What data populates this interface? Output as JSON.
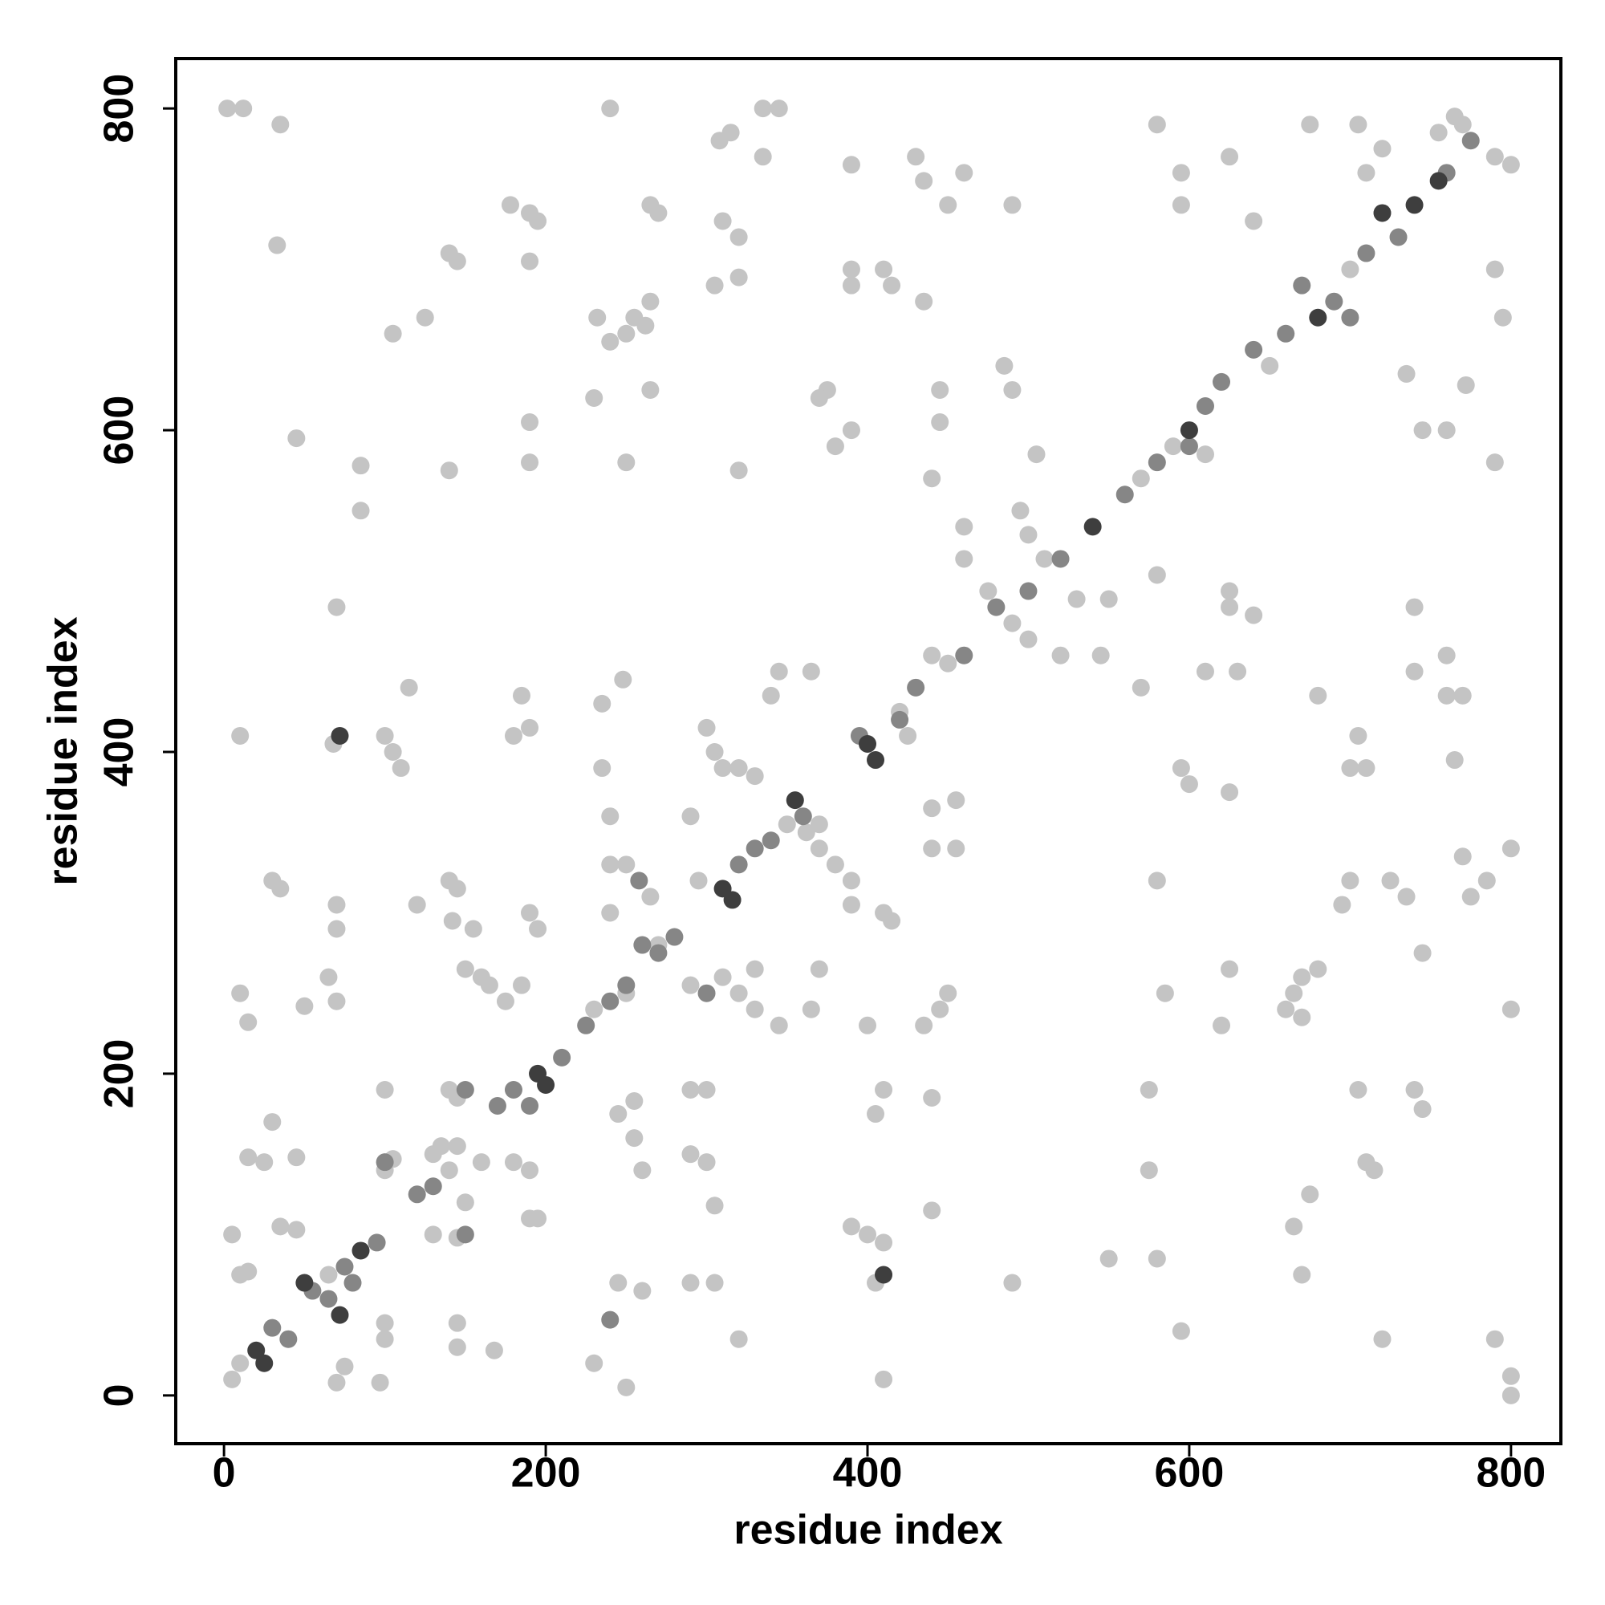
{
  "chart_data": {
    "type": "scatter",
    "xlabel": "residue index",
    "ylabel": "residue index",
    "xlim": [
      -30,
      831
    ],
    "ylim": [
      -30,
      831
    ],
    "xticks": [
      0,
      200,
      400,
      600,
      800
    ],
    "yticks": [
      0,
      200,
      400,
      600,
      800
    ],
    "series": [
      {
        "color": "#c4c4c4",
        "x": [
          5,
          10,
          65,
          130,
          140,
          145,
          230,
          250,
          290,
          350,
          370,
          420,
          450,
          490,
          510,
          570,
          590,
          650,
          700,
          765,
          790,
          800,
          2,
          12,
          35,
          33,
          240,
          335,
          345,
          308,
          315,
          335,
          390,
          430,
          435,
          460,
          450,
          490,
          580,
          595,
          595,
          625,
          640,
          675,
          705,
          710,
          720,
          755,
          770,
          790,
          795,
          178,
          190,
          195,
          265,
          270,
          145,
          140,
          190,
          305,
          310,
          320,
          320,
          390,
          390,
          410,
          415,
          435,
          375,
          370,
          380,
          390,
          240,
          250,
          255,
          265,
          262,
          232,
          230,
          265,
          105,
          125,
          45,
          85,
          85,
          140,
          190,
          190,
          250,
          320,
          445,
          445,
          440,
          485,
          490,
          495,
          460,
          460,
          505,
          500,
          475,
          500,
          530,
          550,
          580,
          610,
          625,
          625,
          640,
          630,
          610,
          570,
          545,
          520,
          70,
          10,
          68,
          100,
          105,
          110,
          115,
          180,
          185,
          190,
          248,
          300,
          305,
          310,
          320,
          330,
          345,
          340,
          365,
          440,
          425,
          440,
          455,
          455,
          440,
          370,
          365,
          345,
          330,
          310,
          320,
          330,
          295,
          290,
          235,
          235,
          240,
          240,
          250,
          265,
          240,
          270,
          390,
          390,
          380,
          410,
          415,
          370,
          362,
          30,
          35,
          70,
          70,
          65,
          70,
          50,
          10,
          15,
          120,
          140,
          145,
          142,
          155,
          150,
          160,
          165,
          175,
          185,
          190,
          195,
          190,
          195,
          190,
          180,
          160,
          150,
          130,
          145,
          135,
          140,
          145,
          15,
          25,
          30,
          45,
          35,
          45,
          5,
          10,
          15,
          100,
          100,
          105,
          100,
          100,
          97,
          70,
          75,
          145,
          145,
          168,
          230,
          250,
          245,
          260,
          290,
          305,
          320,
          305,
          300,
          290,
          290,
          300,
          260,
          255,
          245,
          255,
          400,
          410,
          405,
          410,
          390,
          400,
          410,
          405,
          445,
          450,
          435,
          440,
          440,
          490,
          550,
          580,
          575,
          575,
          585,
          580,
          595,
          600,
          595,
          625,
          620,
          625,
          665,
          660,
          670,
          680,
          665,
          675,
          670,
          670,
          705,
          710,
          715,
          720,
          740,
          745,
          725,
          735,
          745,
          700,
          695,
          700,
          710,
          705,
          760,
          760,
          770,
          740,
          740,
          735,
          745,
          760,
          772,
          775,
          785,
          800,
          800,
          790,
          800,
          800,
          765,
          770,
          790,
          680
        ],
        "y": [
          10,
          20,
          75,
          150,
          140,
          155,
          240,
          250,
          255,
          355,
          355,
          425,
          455,
          480,
          520,
          570,
          590,
          640,
          700,
          795,
          770,
          765,
          800,
          800,
          790,
          715,
          800,
          800,
          800,
          780,
          785,
          770,
          765,
          770,
          755,
          760,
          740,
          740,
          790,
          760,
          740,
          770,
          730,
          790,
          790,
          760,
          775,
          785,
          790,
          700,
          670,
          740,
          735,
          730,
          740,
          735,
          705,
          710,
          705,
          690,
          730,
          720,
          695,
          700,
          690,
          700,
          690,
          680,
          625,
          620,
          590,
          600,
          655,
          660,
          670,
          680,
          665,
          670,
          620,
          625,
          660,
          670,
          595,
          578,
          550,
          575,
          580,
          605,
          580,
          575,
          625,
          605,
          570,
          640,
          625,
          550,
          540,
          520,
          585,
          535,
          500,
          470,
          495,
          495,
          510,
          585,
          500,
          490,
          485,
          450,
          450,
          440,
          460,
          460,
          490,
          410,
          405,
          410,
          400,
          390,
          440,
          410,
          435,
          415,
          445,
          415,
          400,
          390,
          390,
          385,
          450,
          435,
          450,
          460,
          410,
          365,
          370,
          340,
          340,
          265,
          240,
          230,
          240,
          260,
          250,
          265,
          320,
          360,
          390,
          430,
          360,
          330,
          330,
          310,
          300,
          280,
          320,
          305,
          330,
          300,
          295,
          340,
          350,
          320,
          315,
          305,
          290,
          260,
          245,
          242,
          250,
          232,
          305,
          320,
          315,
          295,
          290,
          265,
          260,
          255,
          245,
          255,
          300,
          290,
          110,
          110,
          140,
          145,
          145,
          120,
          100,
          98,
          155,
          190,
          185,
          148,
          145,
          170,
          148,
          105,
          103,
          100,
          75,
          77,
          190,
          140,
          147,
          45,
          35,
          8,
          8,
          18,
          30,
          45,
          28,
          20,
          5,
          70,
          65,
          70,
          70,
          35,
          118,
          145,
          150,
          190,
          190,
          140,
          160,
          175,
          183,
          230,
          190,
          175,
          10,
          105,
          100,
          95,
          70,
          240,
          250,
          230,
          115,
          185,
          70,
          85,
          85,
          140,
          190,
          250,
          320,
          40,
          380,
          390,
          375,
          230,
          265,
          250,
          240,
          260,
          265,
          105,
          125,
          75,
          235,
          190,
          145,
          140,
          35,
          190,
          178,
          320,
          310,
          275,
          320,
          305,
          390,
          390,
          410,
          460,
          435,
          435,
          450,
          490,
          635,
          600,
          600,
          628,
          310,
          320,
          340,
          240,
          35,
          12,
          0,
          395,
          335,
          580,
          435
        ]
      },
      {
        "color": "#868686",
        "x": [
          30,
          40,
          55,
          65,
          75,
          80,
          95,
          100,
          120,
          130,
          150,
          150,
          170,
          180,
          190,
          210,
          225,
          240,
          250,
          260,
          270,
          280,
          300,
          320,
          330,
          340,
          360,
          395,
          420,
          430,
          460,
          480,
          500,
          520,
          560,
          580,
          600,
          610,
          620,
          640,
          660,
          670,
          690,
          700,
          710,
          730,
          760,
          775,
          240,
          258
        ],
        "y": [
          42,
          35,
          65,
          60,
          80,
          70,
          95,
          145,
          125,
          130,
          190,
          100,
          180,
          190,
          180,
          210,
          230,
          245,
          255,
          280,
          275,
          285,
          250,
          330,
          340,
          345,
          360,
          410,
          420,
          440,
          460,
          490,
          500,
          520,
          560,
          580,
          590,
          615,
          630,
          650,
          660,
          690,
          680,
          670,
          710,
          720,
          760,
          780,
          47,
          320
        ]
      },
      {
        "color": "#3e3e3e",
        "x": [
          20,
          25,
          50,
          72,
          85,
          195,
          200,
          310,
          316,
          355,
          400,
          405,
          410,
          72,
          540,
          600,
          680,
          720,
          740,
          755
        ],
        "y": [
          28,
          20,
          70,
          50,
          90,
          200,
          193,
          315,
          308,
          370,
          405,
          395,
          75,
          410,
          540,
          600,
          670,
          735,
          740,
          755
        ]
      }
    ]
  }
}
